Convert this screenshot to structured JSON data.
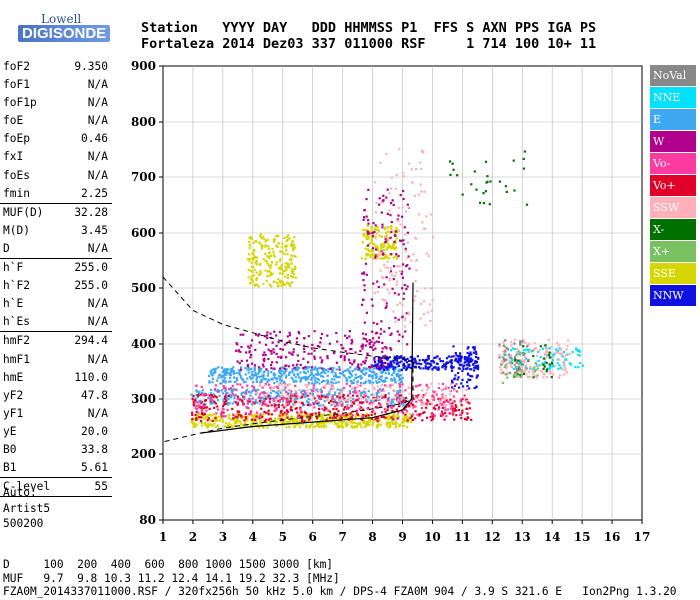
{
  "logo": {
    "top": "Lowell",
    "bottom": "DIGISONDE"
  },
  "header": {
    "line1": "Station   YYYY DAY   DDD HHMMSS P1  FFS S AXN PPS IGA PS",
    "line2": "Fortaleza 2014 Dez03 337 011000 RSF     1 714 100 10+ 11"
  },
  "params": [
    {
      "label": "foF2",
      "value": "9.350"
    },
    {
      "label": "foF1",
      "value": "N/A"
    },
    {
      "label": "foF1p",
      "value": "N/A"
    },
    {
      "label": "foE",
      "value": "N/A"
    },
    {
      "label": "foEp",
      "value": "0.46"
    },
    {
      "label": "fxI",
      "value": "N/A"
    },
    {
      "label": "foEs",
      "value": "N/A"
    },
    {
      "label": "fmin",
      "value": "2.25"
    },
    {
      "sep": true
    },
    {
      "label": "MUF(D)",
      "value": "32.28"
    },
    {
      "label": "M(D)",
      "value": "3.45"
    },
    {
      "label": "D",
      "value": "N/A"
    },
    {
      "sep": true
    },
    {
      "label": "h`F",
      "value": "255.0"
    },
    {
      "label": "h`F2",
      "value": "255.0"
    },
    {
      "label": "h`E",
      "value": "N/A"
    },
    {
      "label": "h`Es",
      "value": "N/A"
    },
    {
      "sep": true
    },
    {
      "label": "hmF2",
      "value": "294.4"
    },
    {
      "label": "hmF1",
      "value": "N/A"
    },
    {
      "label": "hmE",
      "value": "110.0"
    },
    {
      "label": "yF2",
      "value": "47.8"
    },
    {
      "label": "yF1",
      "value": "N/A"
    },
    {
      "label": "yE",
      "value": "20.0"
    },
    {
      "label": "B0",
      "value": "33.8"
    },
    {
      "label": "B1",
      "value": "5.61"
    },
    {
      "sep": true
    },
    {
      "label": "C-level",
      "value": "55"
    },
    {
      "sep": true
    }
  ],
  "auto": {
    "line1": "Auto:",
    "line2": "Artist5",
    "line3": "500200"
  },
  "footer": {
    "d_line": "D     100  200  400  600  800 1000 1500 3000 [km]",
    "muf_line": "MUF   9.7  9.8 10.3 11.2 12.4 14.1 19.2 32.3 [MHz]",
    "file_line": "FZA0M_2014337011000.RSF / 320fx256h 50 kHz 5.0 km / DPS-4 FZA0M 904 / 3.9 S 321.6 E   Ion2Png 1.3.20"
  },
  "legend": [
    {
      "label": "NoVal",
      "color": "#888888"
    },
    {
      "label": "NNE",
      "color": "#00e0ff"
    },
    {
      "label": "E",
      "color": "#3ea8f2"
    },
    {
      "label": "W",
      "color": "#b0008c"
    },
    {
      "label": "Vo-",
      "color": "#ff3aa0"
    },
    {
      "label": "Vo+",
      "color": "#e00028"
    },
    {
      "label": "SSW",
      "color": "#ffb0b8"
    },
    {
      "label": "X-",
      "color": "#007000"
    },
    {
      "label": "X+",
      "color": "#78c060"
    },
    {
      "label": "SSE",
      "color": "#d6d600"
    },
    {
      "label": "NNW",
      "color": "#1010e0"
    }
  ],
  "chart_data": {
    "type": "scatter",
    "xlim": [
      1,
      17
    ],
    "ylim": [
      80,
      900
    ],
    "x_ticks": [
      "1",
      "2",
      "3",
      "4",
      "5",
      "6",
      "7",
      "8",
      "9",
      "10",
      "11",
      "12",
      "13",
      "14",
      "15",
      "16",
      "17"
    ],
    "y_ticks": [
      "80",
      "200",
      "300",
      "400",
      "500",
      "600",
      "700",
      "800",
      "900"
    ],
    "y_tick_values": [
      80,
      200,
      300,
      400,
      500,
      600,
      700,
      800,
      900
    ],
    "grid": true,
    "clusters": [
      {
        "name": "SSE",
        "f": [
          1.9,
          9.3
        ],
        "h": [
          250,
          275
        ],
        "n": 500
      },
      {
        "name": "SSE",
        "f": [
          3.8,
          5.4
        ],
        "h": [
          505,
          600
        ],
        "n": 220
      },
      {
        "name": "SSE",
        "f": [
          7.6,
          8.8
        ],
        "h": [
          555,
          615
        ],
        "n": 150
      },
      {
        "name": "E",
        "f": [
          2.5,
          9.0
        ],
        "h": [
          330,
          360
        ],
        "n": 450
      },
      {
        "name": "E",
        "f": [
          1.9,
          9.2
        ],
        "h": [
          290,
          320
        ],
        "n": 300
      },
      {
        "name": "NNE",
        "f": [
          12.4,
          15.0
        ],
        "h": [
          355,
          395
        ],
        "n": 90
      },
      {
        "name": "NNW",
        "f": [
          8.0,
          11.5
        ],
        "h": [
          355,
          380
        ],
        "n": 240
      },
      {
        "name": "NNW",
        "f": [
          10.6,
          11.5
        ],
        "h": [
          320,
          400
        ],
        "n": 80
      },
      {
        "name": "W",
        "f": [
          3.4,
          8.6
        ],
        "h": [
          355,
          425
        ],
        "n": 220
      },
      {
        "name": "W",
        "f": [
          7.6,
          9.2
        ],
        "h": [
          400,
          680
        ],
        "n": 140
      },
      {
        "name": "Vo+",
        "f": [
          1.9,
          11.3
        ],
        "h": [
          262,
          310
        ],
        "n": 420
      },
      {
        "name": "Vo-",
        "f": [
          2.0,
          11.0
        ],
        "h": [
          270,
          330
        ],
        "n": 260
      },
      {
        "name": "SSW",
        "f": [
          4.0,
          11.2
        ],
        "h": [
          290,
          330
        ],
        "n": 160
      },
      {
        "name": "SSW",
        "f": [
          12.2,
          14.6
        ],
        "h": [
          340,
          410
        ],
        "n": 140
      },
      {
        "name": "SSW",
        "f": [
          8.0,
          10.0
        ],
        "h": [
          430,
          760
        ],
        "n": 120
      },
      {
        "name": "X-",
        "f": [
          10.5,
          13.3
        ],
        "h": [
          650,
          750
        ],
        "n": 28
      },
      {
        "name": "X-",
        "f": [
          12.5,
          14.0
        ],
        "h": [
          340,
          400
        ],
        "n": 30
      },
      {
        "name": "X+",
        "f": [
          12.3,
          13.5
        ],
        "h": [
          330,
          400
        ],
        "n": 30
      },
      {
        "name": "NoVal",
        "f": [
          12.2,
          13.2
        ],
        "h": [
          345,
          410
        ],
        "n": 40
      }
    ],
    "profile_curve": {
      "f": [
        2.25,
        4,
        6,
        8,
        9.0,
        9.3,
        9.33,
        9.35
      ],
      "h": [
        238,
        250,
        258,
        266,
        280,
        300,
        400,
        510
      ]
    },
    "dashed_curve": {
      "f": [
        1.0,
        2.0,
        3.0,
        4.0,
        5.0,
        6.0,
        7.0,
        8.0,
        9.0,
        9.35,
        9.35,
        9.0,
        8.0,
        7.0,
        6.0,
        5.0,
        4.0,
        3.0,
        2.0,
        1.0
      ],
      "h": [
        520,
        460,
        435,
        420,
        405,
        393,
        385,
        378,
        372,
        370,
        300,
        292,
        282,
        274,
        268,
        262,
        255,
        247,
        235,
        222
      ]
    }
  }
}
